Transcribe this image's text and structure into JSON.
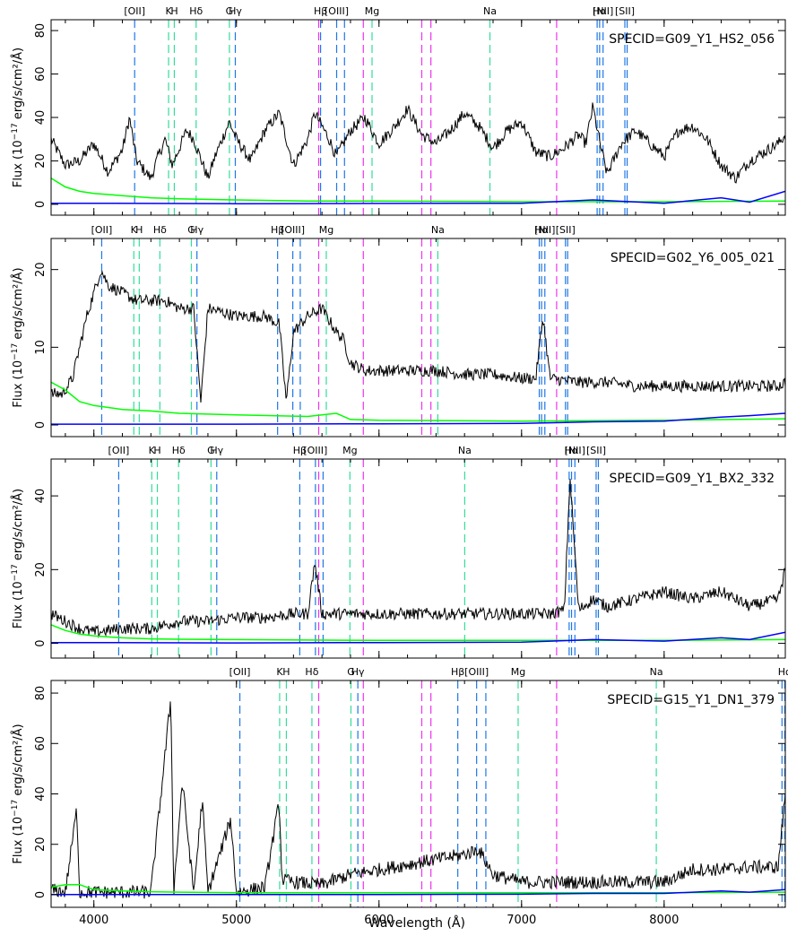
{
  "figure": {
    "xlabel": "Wavelength (Å)",
    "ylabel_prefix": "Flux (10",
    "ylabel_exp": "−17",
    "ylabel_suffix": " erg/s/cm²/Å)",
    "xticks": [
      4000,
      5000,
      6000,
      7000,
      8000
    ],
    "xlim": [
      3700,
      8850
    ]
  },
  "colors": {
    "spectrum": "#000000",
    "error": "#0000ff",
    "sky": "#00ff00",
    "line_blue": "#1f77e6",
    "line_green": "#33dd99",
    "line_magenta": "#ee33ee"
  },
  "chart_data": [
    {
      "type": "line",
      "title": "SPECID=G09_Y1_HS2_056",
      "ylim": [
        -5,
        85
      ],
      "yticks": [
        0,
        20,
        40,
        60,
        80
      ],
      "redshift_factor": 1.15,
      "sky_lines": [
        5577,
        5890,
        6300,
        6364,
        7246
      ],
      "series": [
        {
          "name": "spectrum",
          "x": [
            3700,
            3800,
            3900,
            4000,
            4100,
            4200,
            4250,
            4300,
            4400,
            4450,
            4500,
            4550,
            4650,
            4700,
            4800,
            4850,
            4950,
            5000,
            5100,
            5200,
            5300,
            5400,
            5500,
            5550,
            5600,
            5650,
            5700,
            5800,
            5900,
            6000,
            6100,
            6200,
            6300,
            6400,
            6500,
            6600,
            6700,
            6800,
            6900,
            7000,
            7100,
            7200,
            7300,
            7400,
            7450,
            7500,
            7550,
            7600,
            7700,
            7800,
            7900,
            8000,
            8100,
            8200,
            8300,
            8400,
            8500,
            8600,
            8700,
            8800,
            8850
          ],
          "y": [
            30,
            18,
            20,
            28,
            15,
            25,
            40,
            20,
            12,
            22,
            30,
            18,
            34,
            30,
            12,
            22,
            38,
            30,
            20,
            34,
            42,
            18,
            30,
            42,
            36,
            30,
            22,
            34,
            40,
            28,
            35,
            44,
            32,
            28,
            34,
            42,
            36,
            26,
            34,
            38,
            24,
            22,
            26,
            32,
            28,
            45,
            28,
            14,
            28,
            34,
            28,
            22,
            34,
            36,
            30,
            18,
            12,
            20,
            24,
            28,
            32
          ]
        },
        {
          "name": "sky",
          "x": [
            3700,
            3800,
            3900,
            4000,
            4200,
            4400,
            4600,
            5000,
            5500,
            6000,
            7000,
            8000,
            8850
          ],
          "y": [
            12,
            8,
            6,
            5,
            4,
            3,
            2.5,
            2,
            1.5,
            1.5,
            1.2,
            1.2,
            1.5
          ]
        },
        {
          "name": "error",
          "x": [
            3700,
            4000,
            5000,
            6000,
            7000,
            7500,
            8000,
            8400,
            8600,
            8850
          ],
          "y": [
            0.5,
            0.5,
            0.3,
            0.4,
            0.5,
            2,
            0.5,
            3,
            1,
            6
          ]
        }
      ]
    },
    {
      "type": "line",
      "title": "SPECID=G02_Y6_005_021",
      "ylim": [
        -1.5,
        24
      ],
      "yticks": [
        0,
        10,
        20
      ],
      "redshift_factor": 1.088,
      "sky_lines": [
        5577,
        5890,
        6300,
        6364,
        7246
      ],
      "series": [
        {
          "name": "spectrum",
          "x": [
            3700,
            3780,
            3850,
            3950,
            4000,
            4050,
            4100,
            4200,
            4300,
            4400,
            4500,
            4600,
            4700,
            4750,
            4800,
            5000,
            5200,
            5300,
            5350,
            5400,
            5500,
            5600,
            5700,
            5750,
            5800,
            5900,
            6000,
            6200,
            6400,
            6600,
            6800,
            7000,
            7100,
            7150,
            7200,
            7400,
            7600,
            7800,
            8000,
            8200,
            8400,
            8600,
            8800,
            8850
          ],
          "y": [
            4,
            4,
            6,
            14,
            17,
            20,
            18,
            17,
            16,
            16,
            16,
            15,
            15,
            3,
            15,
            14,
            14,
            13,
            3,
            12,
            14,
            15,
            12,
            11,
            8,
            7,
            7,
            7,
            7,
            6.5,
            6.5,
            6,
            6,
            14,
            6,
            5.5,
            5.5,
            5,
            5,
            5,
            5,
            5,
            5,
            5.5
          ]
        },
        {
          "name": "sky",
          "x": [
            3700,
            3800,
            3900,
            4000,
            4200,
            4400,
            4600,
            5000,
            5500,
            5700,
            5800,
            6000,
            7000,
            8000,
            8850
          ],
          "y": [
            5.5,
            4.5,
            3,
            2.5,
            2,
            1.8,
            1.5,
            1.3,
            1.1,
            1.5,
            0.7,
            0.6,
            0.5,
            0.6,
            0.8
          ]
        },
        {
          "name": "error",
          "x": [
            3700,
            4000,
            5000,
            6000,
            7000,
            7500,
            8000,
            8400,
            8600,
            8850
          ],
          "y": [
            0.1,
            0.1,
            0.1,
            0.15,
            0.2,
            0.4,
            0.5,
            1,
            1.2,
            1.5
          ]
        }
      ]
    },
    {
      "type": "line",
      "title": "SPECID=G09_Y1_BX2_332",
      "ylim": [
        -4,
        50
      ],
      "yticks": [
        0,
        20,
        40
      ],
      "redshift_factor": 1.12,
      "sky_lines": [
        5577,
        5890,
        7246
      ],
      "series": [
        {
          "name": "spectrum",
          "x": [
            3700,
            3800,
            3900,
            4000,
            4200,
            4400,
            4600,
            4800,
            5000,
            5200,
            5400,
            5500,
            5550,
            5600,
            5800,
            6000,
            6200,
            6300,
            6400,
            6600,
            6800,
            7000,
            7200,
            7300,
            7340,
            7400,
            7500,
            7600,
            7800,
            8000,
            8200,
            8400,
            8600,
            8800,
            8850
          ],
          "y": [
            8,
            6,
            4,
            3,
            4,
            4,
            6,
            6,
            7,
            7,
            8,
            8,
            22,
            8,
            8,
            8,
            8,
            8,
            8,
            8,
            8,
            8,
            8,
            9,
            45,
            9,
            12,
            10,
            12,
            14,
            12,
            14,
            10,
            12,
            20
          ]
        },
        {
          "name": "sky",
          "x": [
            3700,
            3800,
            3900,
            4000,
            4200,
            4400,
            4600,
            5000,
            5500,
            6000,
            7000,
            8000,
            8850
          ],
          "y": [
            5,
            3.5,
            2.5,
            2,
            1.5,
            1.2,
            1.1,
            1,
            0.9,
            0.8,
            0.8,
            0.8,
            1
          ]
        },
        {
          "name": "error",
          "x": [
            3700,
            4000,
            5000,
            6000,
            7000,
            7500,
            8000,
            8400,
            8600,
            8850
          ],
          "y": [
            0.2,
            0.2,
            0.1,
            0.2,
            0.3,
            1,
            0.6,
            1.5,
            1,
            3
          ]
        }
      ]
    },
    {
      "type": "line",
      "title": "SPECID=G15_Y1_DN1_379",
      "ylim": [
        -5,
        85
      ],
      "yticks": [
        0,
        20,
        40,
        60,
        80
      ],
      "redshift_factor": 1.348,
      "sky_lines": [
        5577,
        5890,
        6300,
        6364,
        7246
      ],
      "series": [
        {
          "name": "spectrum",
          "x": [
            3700,
            3800,
            3880,
            3900,
            4000,
            4200,
            4400,
            4540,
            4560,
            4620,
            4700,
            4760,
            4800,
            4960,
            5000,
            5200,
            5300,
            5320,
            5400,
            5600,
            5800,
            6000,
            6200,
            6400,
            6600,
            6700,
            6800,
            7000,
            7500,
            8000,
            8200,
            8400,
            8600,
            8800,
            8850
          ],
          "y": [
            2,
            1,
            34,
            1,
            1,
            1,
            1,
            78,
            1,
            45,
            1,
            38,
            1,
            30,
            1,
            3,
            37,
            6,
            5,
            4,
            8,
            10,
            12,
            14,
            16,
            18,
            8,
            5,
            5,
            5,
            10,
            10,
            11,
            11,
            40
          ]
        },
        {
          "name": "sky",
          "x": [
            3700,
            3800,
            3900,
            4000,
            4200,
            4400,
            4600,
            5000,
            5500,
            6000,
            7000,
            8000,
            8850
          ],
          "y": [
            3,
            4,
            4,
            2,
            1.5,
            1.2,
            1,
            0.8,
            0.8,
            0.8,
            0.8,
            0.8,
            1
          ]
        },
        {
          "name": "error",
          "x": [
            3700,
            4000,
            5000,
            6000,
            7000,
            7500,
            8000,
            8400,
            8600,
            8850
          ],
          "y": [
            0.1,
            0.1,
            0.1,
            0.1,
            0.2,
            0.5,
            0.5,
            1.5,
            1,
            2
          ]
        }
      ]
    }
  ],
  "lines": [
    {
      "label": "[OII]",
      "rest": 3727,
      "kind": "em"
    },
    {
      "label": "K",
      "rest": 3934,
      "kind": "abs"
    },
    {
      "label": "H",
      "rest": 3969,
      "kind": "abs"
    },
    {
      "label": "Hδ",
      "rest": 4102,
      "kind": "abs"
    },
    {
      "label": "G",
      "rest": 4305,
      "kind": "abs"
    },
    {
      "label": "Hγ",
      "rest": 4341,
      "kind": "em"
    },
    {
      "label": "Hβ",
      "rest": 4861,
      "kind": "em"
    },
    {
      "label": "[OIII]",
      "rest": 4959,
      "kind": "em",
      "rest2": 5007
    },
    {
      "label": "Mg",
      "rest": 5175,
      "kind": "abs"
    },
    {
      "label": "Na",
      "rest": 5894,
      "kind": "abs"
    },
    {
      "label": "Hα",
      "rest": 6563,
      "kind": "em"
    },
    {
      "label": "[NII]",
      "rest": 6584,
      "kind": "em",
      "rest2": 6548
    },
    {
      "label": "[SII]",
      "rest": 6717,
      "kind": "em",
      "rest2": 6731
    }
  ]
}
